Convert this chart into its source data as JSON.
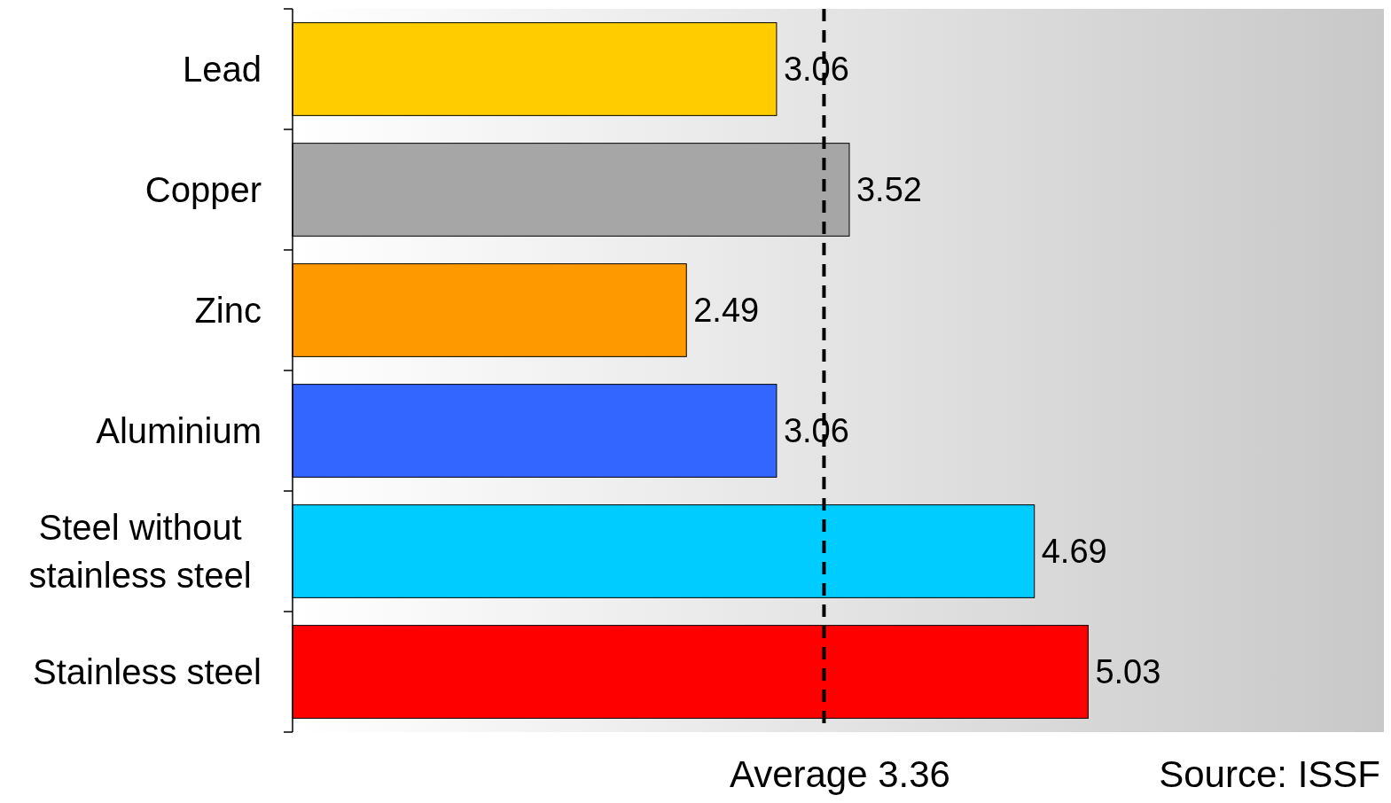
{
  "chart_data": {
    "type": "bar",
    "orientation": "horizontal",
    "categories": [
      "Lead",
      "Copper",
      "Zinc",
      "Aluminium",
      "Steel without stainless steel",
      "Stainless steel"
    ],
    "values": [
      3.06,
      3.52,
      2.49,
      3.06,
      4.69,
      5.03
    ],
    "colors": [
      "#ffcc00",
      "#a6a6a6",
      "#ff9900",
      "#3366ff",
      "#00ccff",
      "#ff0000"
    ],
    "xlim": [
      0,
      6.9
    ],
    "tick_labels": "y",
    "data_labels": true,
    "ref_lines": [
      {
        "axis": "x",
        "value": 3.36,
        "label": "Average 3.36",
        "line_style": "dashed",
        "color": "#000000"
      }
    ],
    "annotations": [
      "Source: ISSF"
    ]
  }
}
